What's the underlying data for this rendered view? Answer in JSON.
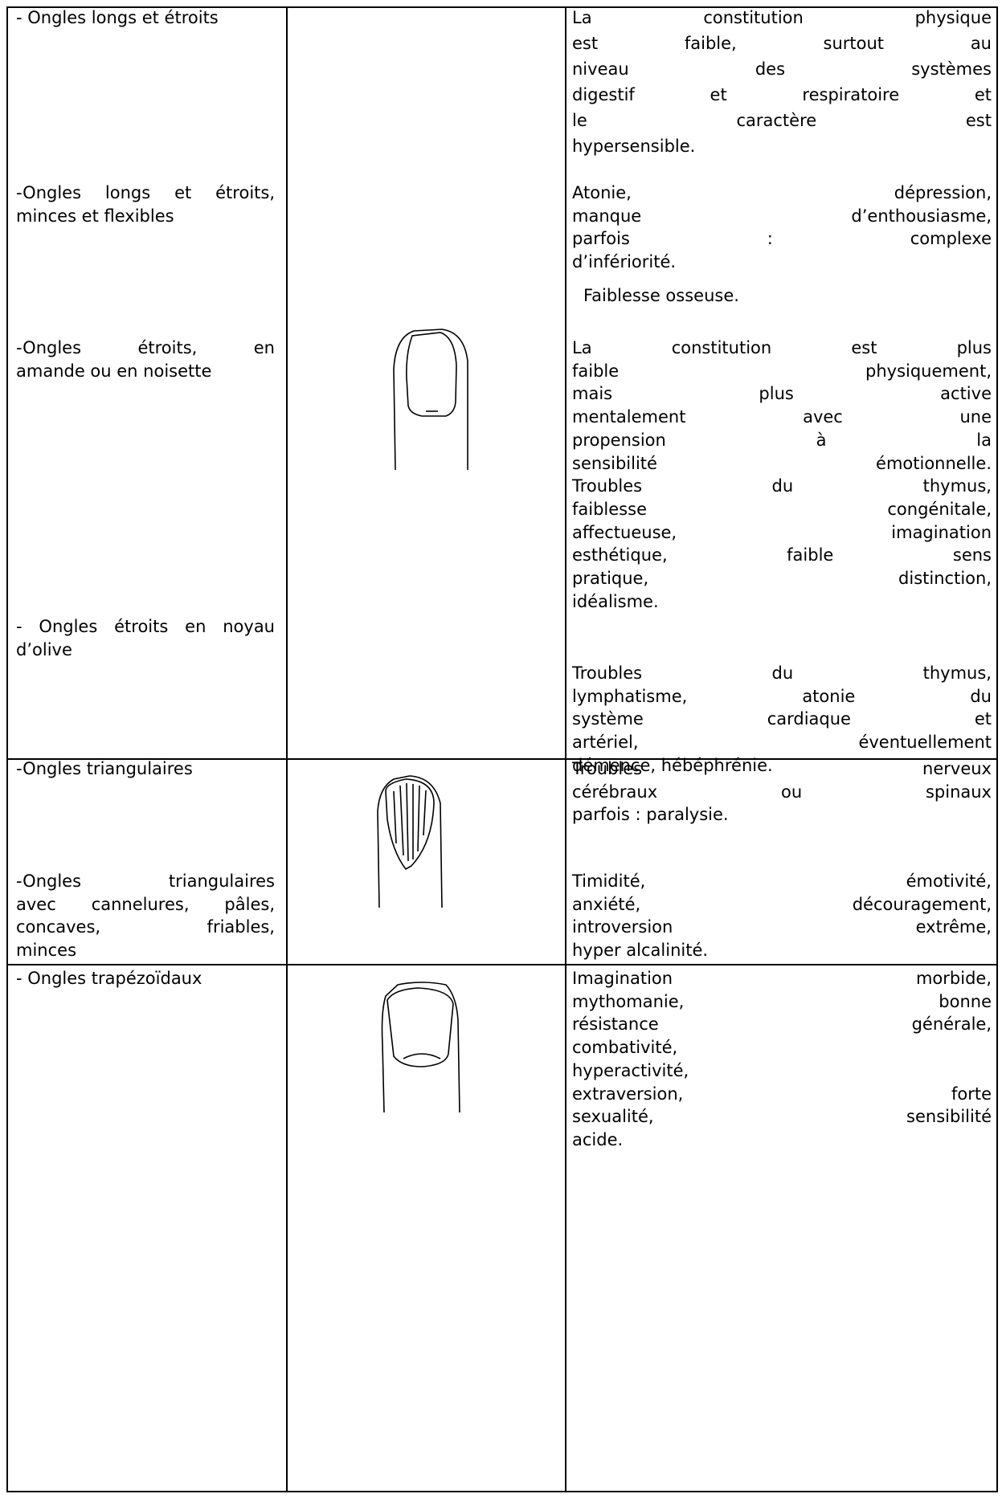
{
  "table": {
    "rows": [
      {
        "left": [
          {
            "lines": [
              "- Ongles longs et étroits"
            ]
          },
          {
            "lines": [
              "-Ongles longs et  étroits,",
              "minces et flexibles"
            ]
          },
          {
            "lines": [
              "-Ongles étroits, en",
              "amande ou en noisette"
            ]
          },
          {
            "lines": [
              "- Ongles étroits en noyau",
              "d’olive"
            ]
          }
        ],
        "right": [
          {
            "lines": [
              "La constitution physique",
              "est faible, surtout au",
              "niveau des systèmes",
              "digestif et respiratoire et",
              "le caractère est",
              "hypersensible."
            ]
          },
          {
            "lines": [
              "Atonie, dépression,",
              "manque d’enthousiasme,",
              "parfois : complexe",
              "d’infériorité."
            ]
          },
          {
            "lines": [
              "Faiblesse osseuse."
            ]
          },
          {
            "lines": [
              "La constitution est plus",
              "faible physiquement,",
              "mais plus active",
              "mentalement avec une",
              "propension à la",
              "sensibilité émotionnelle.",
              "Troubles du thymus,",
              "faiblesse congénitale,",
              "affectueuse, imagination",
              "esthétique, faible sens",
              "pratique, distinction,",
              "idéalisme."
            ]
          },
          {
            "lines": [
              "Troubles du thymus,",
              "lymphatisme, atonie du",
              "système cardiaque et",
              "artériel, éventuellement",
              "démence, hébéphrénie."
            ]
          }
        ]
      },
      {
        "left": [
          {
            "lines": [
              "-Ongles triangulaires"
            ]
          },
          {
            "lines": [
              "-Ongles triangulaires",
              "avec cannelures, pâles,",
              "concaves, friables,",
              "minces"
            ]
          }
        ],
        "right": [
          {
            "lines": [
              "Troubles nerveux",
              "cérébraux ou spinaux",
              "parfois : paralysie."
            ]
          },
          {
            "lines": [
              "Timidité, émotivité,",
              "anxiété, découragement,",
              "introversion extrême,",
              "hyper alcalinité."
            ]
          }
        ]
      },
      {
        "left": [
          {
            "lines": [
              "- Ongles trapézoïdaux"
            ]
          }
        ],
        "right": [
          {
            "lines": [
              "Imagination morbide,",
              "mythomanie, bonne",
              "résistance générale,",
              "combativité,",
              "hyperactivité,",
              "extraversion, forte",
              "sexualité, sensibilité",
              "acide."
            ]
          }
        ]
      }
    ]
  }
}
